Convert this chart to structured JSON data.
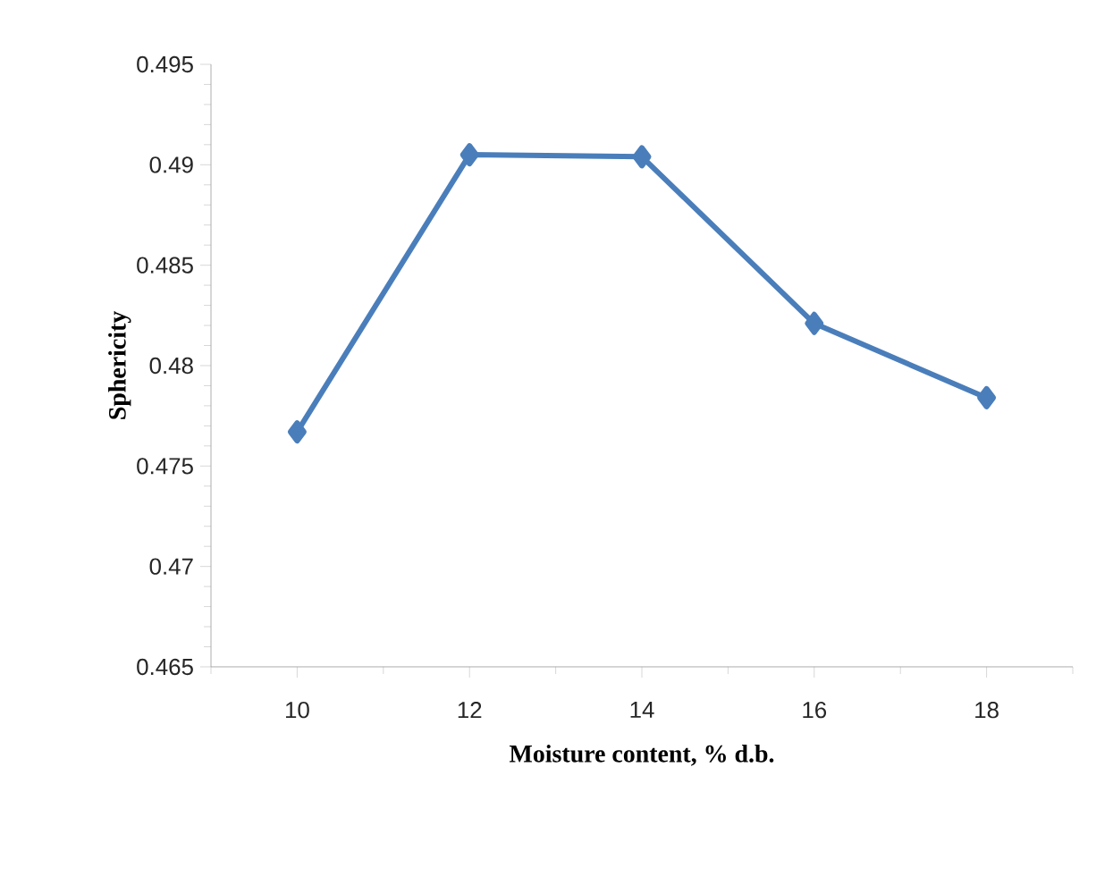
{
  "chart_data": {
    "type": "line",
    "xlabel": "Moisture content, % d.b.",
    "ylabel": "Sphericity",
    "categories": [
      "10",
      "12",
      "14",
      "16",
      "18"
    ],
    "series": [
      {
        "color": "#4a7ebb",
        "values": [
          0.4767,
          0.4905,
          0.4904,
          0.4821,
          0.4784
        ]
      }
    ],
    "ylim": [
      0.465,
      0.495
    ],
    "yticks": [
      0.465,
      0.47,
      0.475,
      0.48,
      0.485,
      0.49,
      0.495
    ],
    "marker": "diamond",
    "line_style": "solid"
  }
}
